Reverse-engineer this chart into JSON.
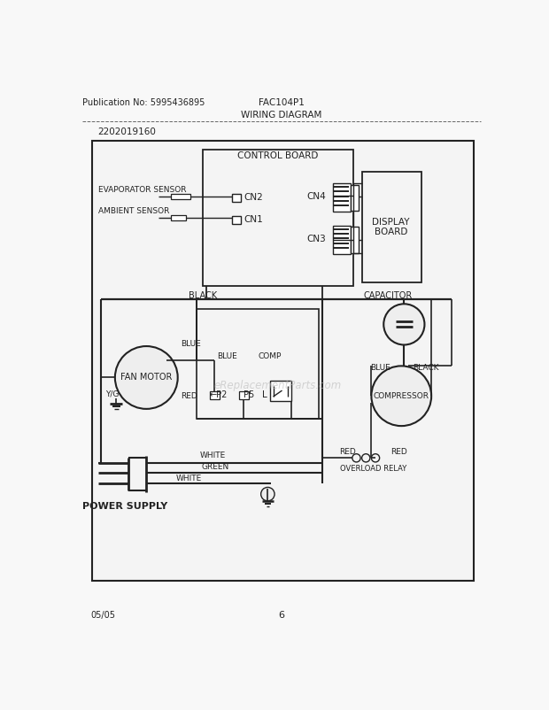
{
  "title_pub": "Publication No: 5995436895",
  "title_model": "FAC104P1",
  "title_diagram": "WIRING DIAGRAM",
  "part_number": "2202019160",
  "footer_left": "05/05",
  "footer_center": "6",
  "bg_color": "#f8f8f8",
  "line_color": "#222222",
  "watermark": "eReplacementParts.com"
}
